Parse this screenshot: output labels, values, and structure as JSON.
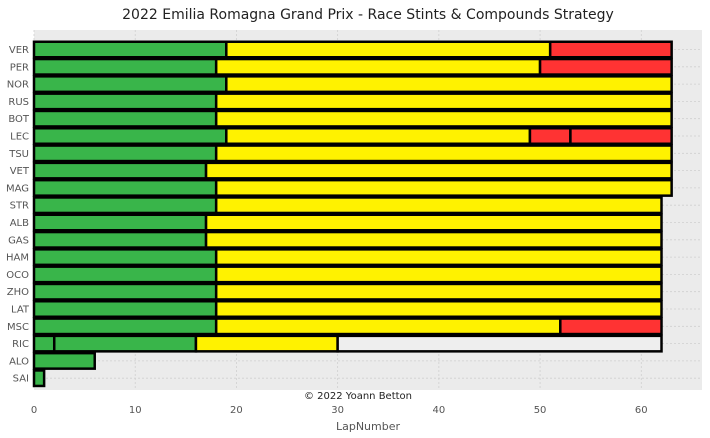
{
  "chart_data": {
    "type": "bar",
    "orientation": "horizontal",
    "stacked": true,
    "title": "2022 Emilia Romagna Grand Prix - Race Stints & Compounds Strategy",
    "xlabel": "LapNumber",
    "ylabel": "",
    "xlim": [
      0,
      66
    ],
    "xticks": [
      0,
      10,
      20,
      30,
      40,
      50,
      60
    ],
    "grid": true,
    "legend": "none",
    "annotation": "© 2022 Yoann Betton",
    "compound_colors": {
      "INTERMEDIATE": "#39b54a",
      "MEDIUM": "#fff200",
      "SOFT": "#ff3333",
      "UNKNOWN": "#eeeeee"
    },
    "drivers": [
      {
        "driver": "VER",
        "stints": [
          {
            "compound": "INTERMEDIATE",
            "start": 0,
            "end": 19
          },
          {
            "compound": "MEDIUM",
            "start": 19,
            "end": 51
          },
          {
            "compound": "SOFT",
            "start": 51,
            "end": 63
          }
        ]
      },
      {
        "driver": "PER",
        "stints": [
          {
            "compound": "INTERMEDIATE",
            "start": 0,
            "end": 18
          },
          {
            "compound": "MEDIUM",
            "start": 18,
            "end": 50
          },
          {
            "compound": "SOFT",
            "start": 50,
            "end": 63
          }
        ]
      },
      {
        "driver": "NOR",
        "stints": [
          {
            "compound": "INTERMEDIATE",
            "start": 0,
            "end": 19
          },
          {
            "compound": "MEDIUM",
            "start": 19,
            "end": 63
          }
        ]
      },
      {
        "driver": "RUS",
        "stints": [
          {
            "compound": "INTERMEDIATE",
            "start": 0,
            "end": 18
          },
          {
            "compound": "MEDIUM",
            "start": 18,
            "end": 63
          }
        ]
      },
      {
        "driver": "BOT",
        "stints": [
          {
            "compound": "INTERMEDIATE",
            "start": 0,
            "end": 18
          },
          {
            "compound": "MEDIUM",
            "start": 18,
            "end": 63
          }
        ]
      },
      {
        "driver": "LEC",
        "stints": [
          {
            "compound": "INTERMEDIATE",
            "start": 0,
            "end": 19
          },
          {
            "compound": "MEDIUM",
            "start": 19,
            "end": 49
          },
          {
            "compound": "SOFT",
            "start": 49,
            "end": 53
          },
          {
            "compound": "SOFT",
            "start": 53,
            "end": 63
          }
        ]
      },
      {
        "driver": "TSU",
        "stints": [
          {
            "compound": "INTERMEDIATE",
            "start": 0,
            "end": 18
          },
          {
            "compound": "MEDIUM",
            "start": 18,
            "end": 63
          }
        ]
      },
      {
        "driver": "VET",
        "stints": [
          {
            "compound": "INTERMEDIATE",
            "start": 0,
            "end": 17
          },
          {
            "compound": "MEDIUM",
            "start": 17,
            "end": 63
          }
        ]
      },
      {
        "driver": "MAG",
        "stints": [
          {
            "compound": "INTERMEDIATE",
            "start": 0,
            "end": 18
          },
          {
            "compound": "MEDIUM",
            "start": 18,
            "end": 63
          }
        ]
      },
      {
        "driver": "STR",
        "stints": [
          {
            "compound": "INTERMEDIATE",
            "start": 0,
            "end": 18
          },
          {
            "compound": "MEDIUM",
            "start": 18,
            "end": 62
          }
        ]
      },
      {
        "driver": "ALB",
        "stints": [
          {
            "compound": "INTERMEDIATE",
            "start": 0,
            "end": 17
          },
          {
            "compound": "MEDIUM",
            "start": 17,
            "end": 62
          }
        ]
      },
      {
        "driver": "GAS",
        "stints": [
          {
            "compound": "INTERMEDIATE",
            "start": 0,
            "end": 17
          },
          {
            "compound": "MEDIUM",
            "start": 17,
            "end": 62
          }
        ]
      },
      {
        "driver": "HAM",
        "stints": [
          {
            "compound": "INTERMEDIATE",
            "start": 0,
            "end": 18
          },
          {
            "compound": "MEDIUM",
            "start": 18,
            "end": 62
          }
        ]
      },
      {
        "driver": "OCO",
        "stints": [
          {
            "compound": "INTERMEDIATE",
            "start": 0,
            "end": 18
          },
          {
            "compound": "MEDIUM",
            "start": 18,
            "end": 62
          }
        ]
      },
      {
        "driver": "ZHO",
        "stints": [
          {
            "compound": "INTERMEDIATE",
            "start": 0,
            "end": 18
          },
          {
            "compound": "MEDIUM",
            "start": 18,
            "end": 62
          }
        ]
      },
      {
        "driver": "LAT",
        "stints": [
          {
            "compound": "INTERMEDIATE",
            "start": 0,
            "end": 18
          },
          {
            "compound": "MEDIUM",
            "start": 18,
            "end": 62
          }
        ]
      },
      {
        "driver": "MSC",
        "stints": [
          {
            "compound": "INTERMEDIATE",
            "start": 0,
            "end": 18
          },
          {
            "compound": "MEDIUM",
            "start": 18,
            "end": 52
          },
          {
            "compound": "SOFT",
            "start": 52,
            "end": 62
          }
        ]
      },
      {
        "driver": "RIC",
        "stints": [
          {
            "compound": "INTERMEDIATE",
            "start": 0,
            "end": 2
          },
          {
            "compound": "INTERMEDIATE",
            "start": 2,
            "end": 16
          },
          {
            "compound": "MEDIUM",
            "start": 16,
            "end": 30
          },
          {
            "compound": "UNKNOWN",
            "start": 30,
            "end": 62
          }
        ]
      },
      {
        "driver": "ALO",
        "stints": [
          {
            "compound": "INTERMEDIATE",
            "start": 0,
            "end": 6
          }
        ]
      },
      {
        "driver": "SAI",
        "stints": [
          {
            "compound": "INTERMEDIATE",
            "start": 0,
            "end": 1
          }
        ]
      }
    ]
  }
}
